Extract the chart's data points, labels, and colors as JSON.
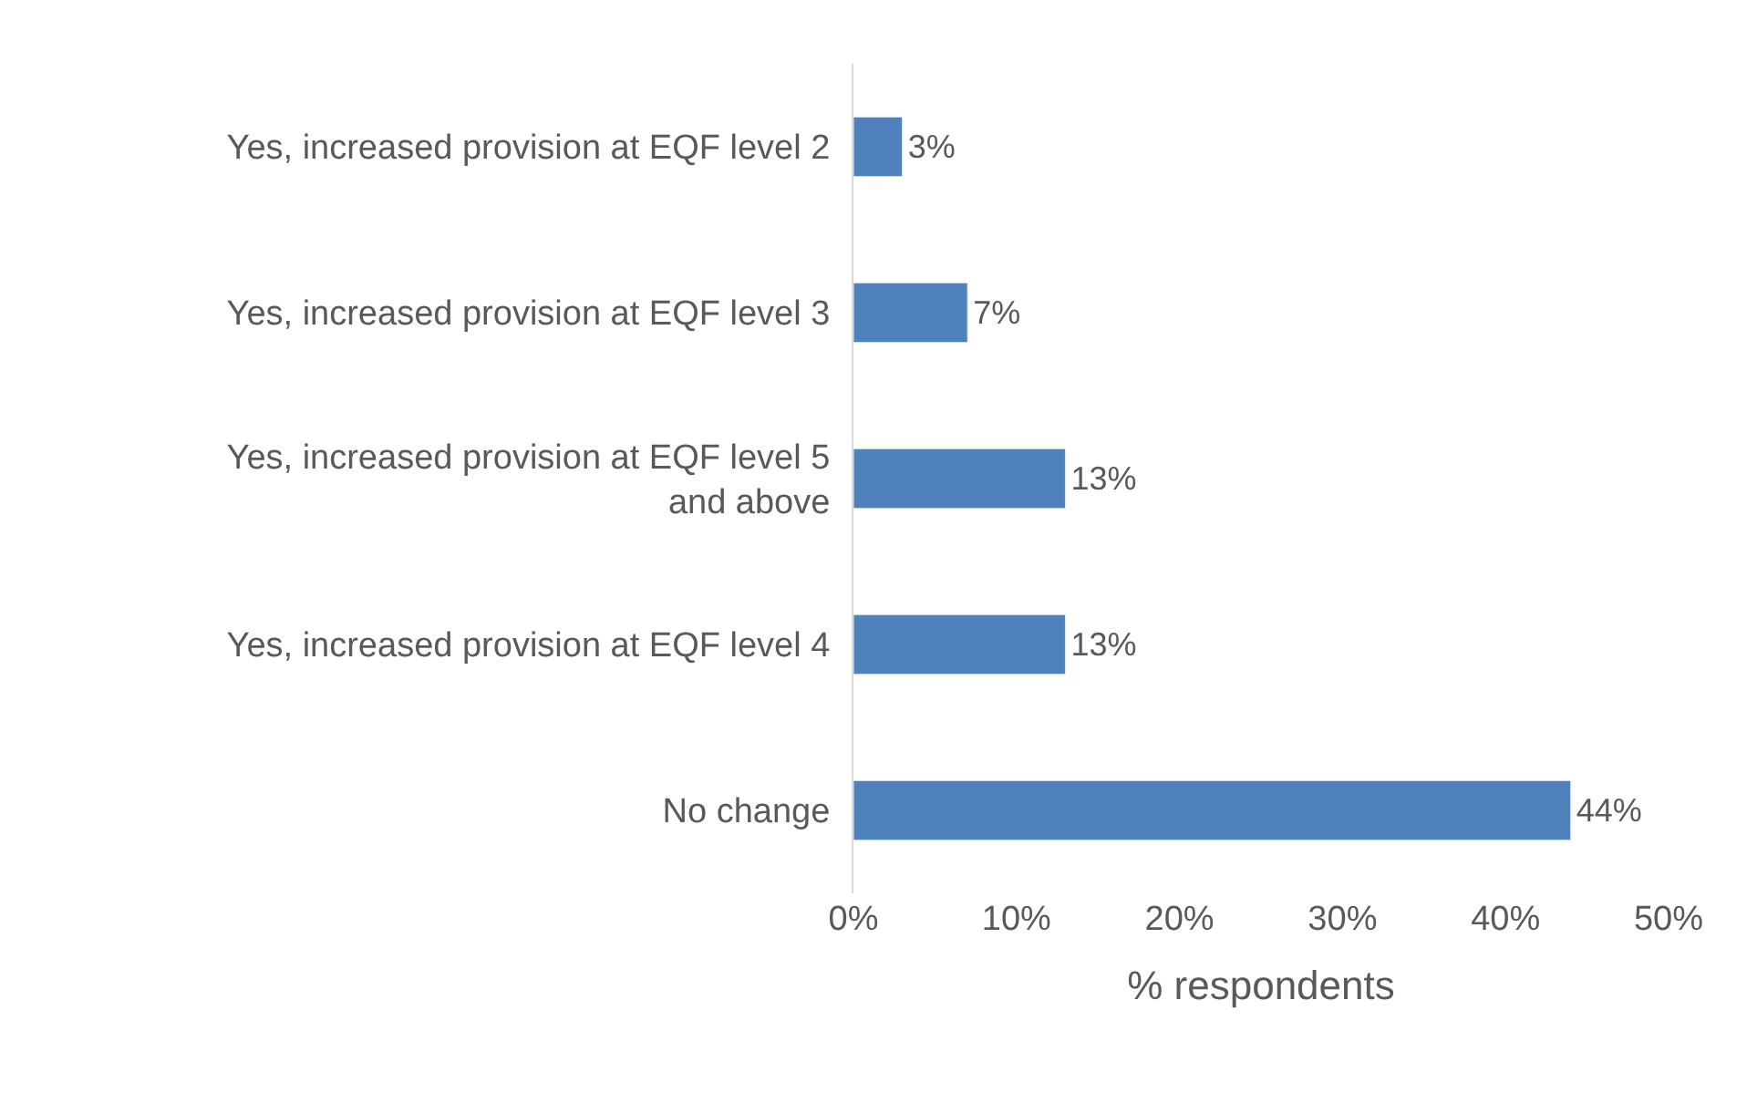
{
  "chart_data": {
    "type": "bar",
    "orientation": "horizontal",
    "categories": [
      "Yes, increased provision at EQF level 2",
      "Yes, increased provision at EQF level 3",
      "Yes, increased provision at EQF level 5 and above",
      "Yes, increased provision at EQF level 4",
      "No change"
    ],
    "values": [
      3,
      7,
      13,
      13,
      44
    ],
    "value_labels": [
      "3%",
      "7%",
      "13%",
      "13%",
      "44%"
    ],
    "color": "#4f81bd",
    "xlim": [
      0,
      50
    ],
    "xticks": [
      {
        "value": 0,
        "label": "0%"
      },
      {
        "value": 10,
        "label": "10%"
      },
      {
        "value": 20,
        "label": "20%"
      },
      {
        "value": 30,
        "label": "30%"
      },
      {
        "value": 40,
        "label": "40%"
      },
      {
        "value": 50,
        "label": "50%"
      }
    ],
    "xlabel": "% respondents"
  }
}
